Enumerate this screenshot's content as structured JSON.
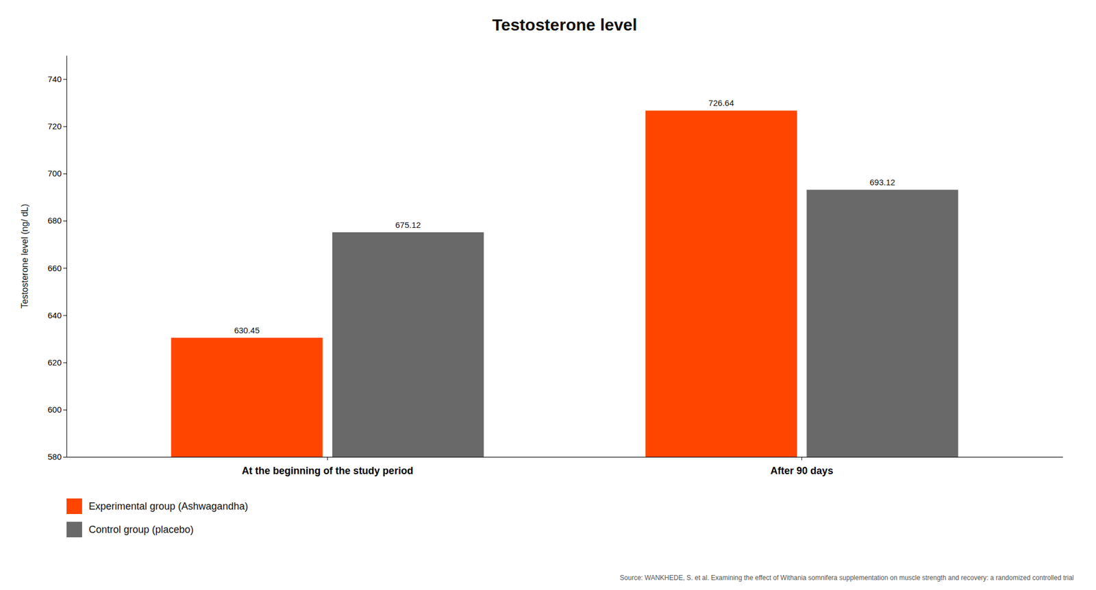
{
  "chart_data": {
    "type": "bar",
    "title": "Testosterone level",
    "ylabel": "Testosterone level (ng/ dL)",
    "categories": [
      "At the beginning of the study period",
      "After 90 days"
    ],
    "series": [
      {
        "name": "Experimental group (Ashwagandha)",
        "color": "#FF4500",
        "values": [
          630.45,
          726.64
        ]
      },
      {
        "name": "Control group (placebo)",
        "color": "#696969",
        "values": [
          675.12,
          693.12
        ]
      }
    ],
    "ylim": [
      580,
      750
    ],
    "yticks": [
      580,
      600,
      620,
      640,
      660,
      680,
      700,
      720,
      740
    ],
    "grid": false,
    "legend": "bottom",
    "data_labels": true,
    "annotations": [
      "Source: WANKHEDE, S. et al. Examining the effect of Withania somnifera supplementation on muscle strength and recovery: a randomized controlled trial"
    ]
  }
}
